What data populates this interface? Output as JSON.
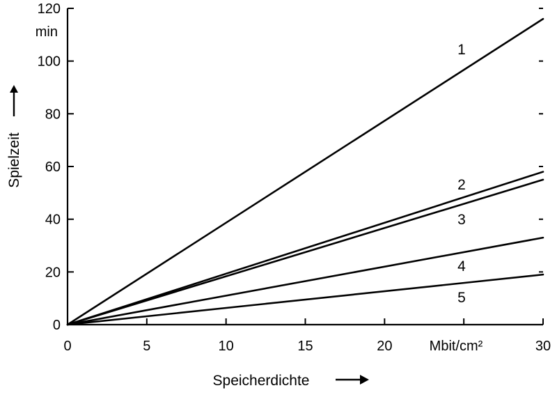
{
  "chart_data": {
    "type": "line",
    "xlabel": "Speicherdichte",
    "ylabel": "Spielzeit",
    "x_unit": "Mbit/cm²",
    "y_unit": "min",
    "xlim": [
      0,
      30
    ],
    "ylim": [
      0,
      120
    ],
    "x_ticks": [
      0,
      5,
      10,
      15,
      20,
      30
    ],
    "y_ticks": [
      0,
      20,
      40,
      60,
      80,
      100,
      120
    ],
    "grid": false,
    "series": [
      {
        "label": "1",
        "x": [
          0,
          30
        ],
        "y": [
          0,
          116
        ]
      },
      {
        "label": "2",
        "x": [
          0,
          30
        ],
        "y": [
          0,
          58
        ]
      },
      {
        "label": "3",
        "x": [
          0,
          30
        ],
        "y": [
          0,
          55
        ]
      },
      {
        "label": "4",
        "x": [
          0,
          30
        ],
        "y": [
          0,
          33
        ]
      },
      {
        "label": "5",
        "x": [
          0,
          30
        ],
        "y": [
          0,
          19
        ]
      }
    ]
  }
}
